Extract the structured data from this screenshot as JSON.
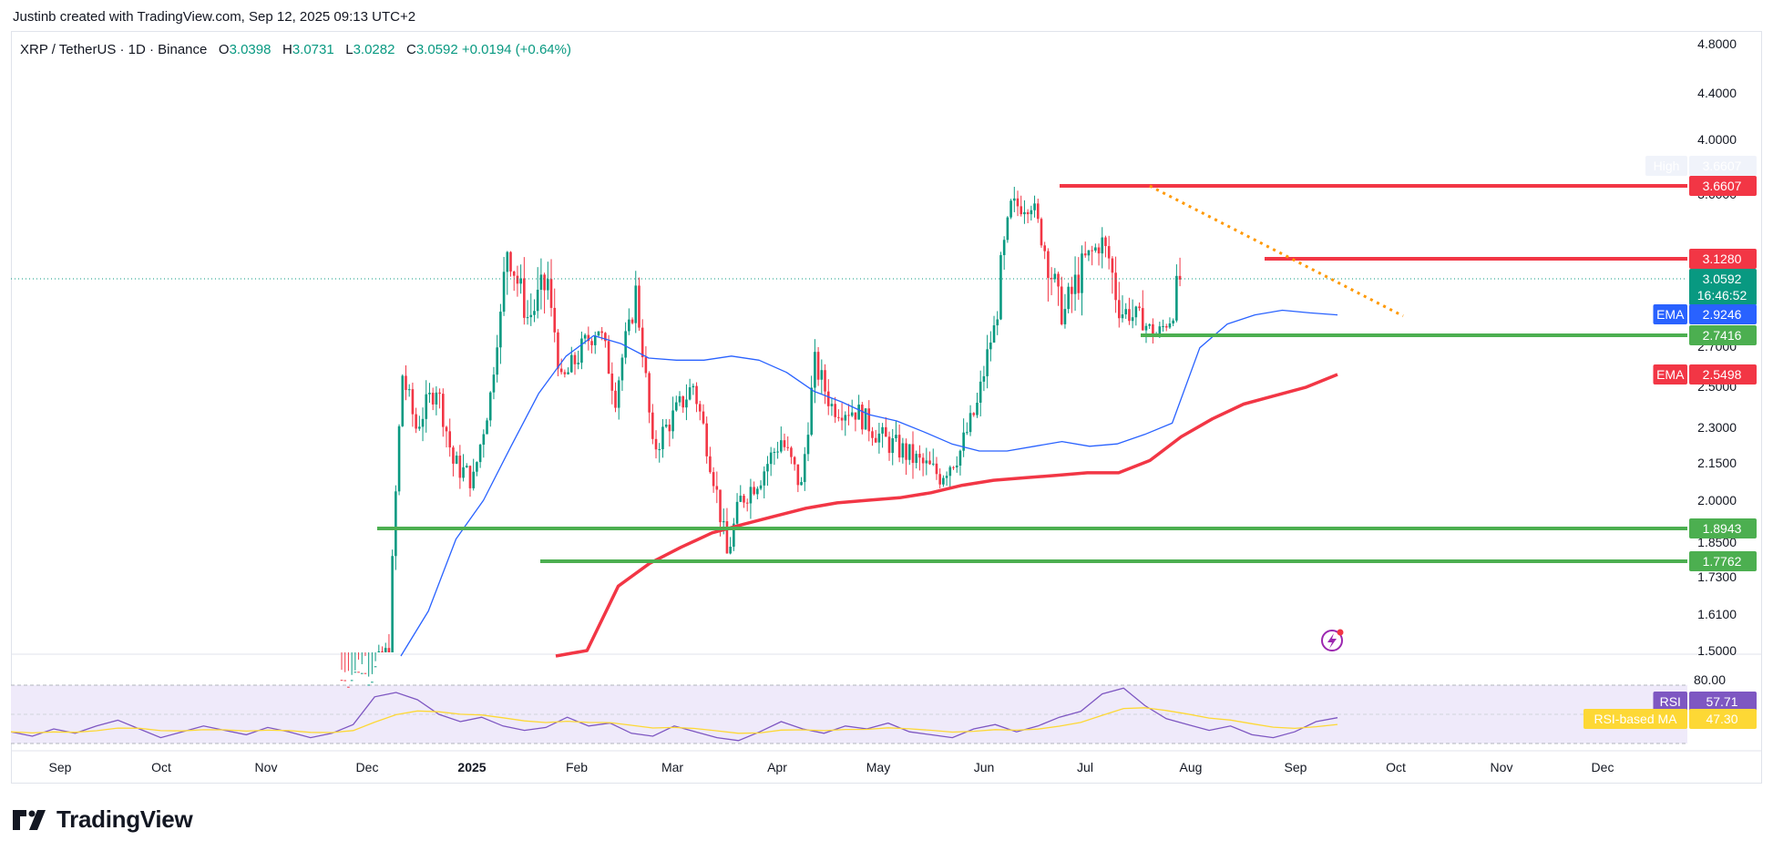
{
  "header": {
    "creator_line": "Justinb created with TradingView.com, Sep 12, 2025 09:13 UTC+2"
  },
  "legend": {
    "symbol": "XRP / TetherUS · 1D · Binance",
    "o_label": "O",
    "o_value": "3.0398",
    "h_label": "H",
    "h_value": "3.0731",
    "l_label": "L",
    "l_value": "3.0282",
    "c_label": "C",
    "c_value": "3.0592",
    "change": "+0.0194 (+0.64%)"
  },
  "brand": {
    "name": "TradingView"
  },
  "colors": {
    "up": "#089981",
    "down": "#f23645",
    "ema_fast": "#2962ff",
    "ema_slow": "#f23645",
    "support": "#4caf50",
    "resistance": "#f23645",
    "trendline": "#ff9800",
    "rsi": "#7e57c2",
    "rsi_ma": "#fdd835"
  },
  "chart_data": {
    "type": "candlestick",
    "symbol": "XRP / TetherUS",
    "interval": "1D",
    "exchange": "Binance",
    "price_axis_labels": [
      "4.8000",
      "4.4000",
      "4.0000",
      "3.6000",
      "3.1280",
      "2.7000",
      "2.5000",
      "2.3000",
      "2.1500",
      "2.0000",
      "1.8500",
      "1.7300",
      "1.6100",
      "1.5000"
    ],
    "time_axis_labels": [
      "Sep",
      "Oct",
      "Nov",
      "Dec",
      "2025",
      "Feb",
      "Mar",
      "Apr",
      "May",
      "Jun",
      "Jul",
      "Aug",
      "Sep",
      "Oct",
      "Nov",
      "Dec"
    ],
    "series": [
      {
        "name": "EMA",
        "values_sampled": [
          1.47,
          1.62,
          1.86,
          2.0,
          2.22,
          2.46,
          2.64,
          2.74,
          2.7,
          2.63,
          2.62,
          2.62,
          2.64,
          2.62,
          2.56,
          2.47,
          2.42,
          2.36,
          2.33,
          2.28,
          2.23,
          2.2,
          2.2,
          2.22,
          2.24,
          2.22,
          2.23,
          2.27,
          2.32,
          2.68,
          2.84,
          2.92,
          2.94,
          2.93,
          2.92
        ]
      },
      {
        "name": "EMA",
        "values_sampled": [
          1.25,
          1.5,
          1.7,
          1.77,
          1.83,
          1.88,
          1.91,
          1.94,
          1.97,
          1.99,
          2.0,
          2.01,
          2.03,
          2.06,
          2.08,
          2.09,
          2.1,
          2.11,
          2.11,
          2.16,
          2.26,
          2.34,
          2.41,
          2.45,
          2.49,
          2.55
        ]
      }
    ],
    "price_tags": [
      {
        "label": "High",
        "value": "3.6607"
      },
      {
        "value": "3.6607"
      },
      {
        "value": "3.1280"
      },
      {
        "value": "3.0592",
        "countdown": "16:46:52"
      },
      {
        "label": "EMA",
        "value": "2.9246"
      },
      {
        "value": "2.7416"
      },
      {
        "label": "EMA",
        "value": "2.5498"
      },
      {
        "value": "1.8943"
      },
      {
        "value": "1.7762"
      }
    ],
    "horizontal_levels": [
      {
        "kind": "resistance",
        "value": 3.6607
      },
      {
        "kind": "resistance",
        "value": 3.128
      },
      {
        "kind": "support",
        "value": 2.7416
      },
      {
        "kind": "support",
        "value": 1.8943
      },
      {
        "kind": "support",
        "value": 1.7762
      }
    ],
    "trendline": {
      "style": "dotted",
      "from": {
        "date": "Jul 18",
        "price": 3.66
      },
      "to": {
        "date": "Sep 30",
        "price": 2.91
      }
    },
    "rsi": {
      "axis_label": "80.00",
      "rsi_label": "RSI",
      "rsi_value": "57.71",
      "ma_label": "RSI-based MA",
      "ma_value": "47.30",
      "values_sampled": [
        48,
        45,
        50,
        47,
        52,
        56,
        50,
        44,
        48,
        52,
        49,
        46,
        51,
        48,
        44,
        47,
        53,
        72,
        75,
        70,
        60,
        55,
        58,
        52,
        49,
        51,
        58,
        52,
        54,
        47,
        45,
        52,
        48,
        44,
        42,
        48,
        55,
        50,
        47,
        52,
        50,
        54,
        48,
        46,
        44,
        50,
        53,
        48,
        52,
        58,
        62,
        74,
        78,
        66,
        57,
        53,
        49,
        52,
        46,
        44,
        48,
        55,
        57.7
      ]
    }
  }
}
